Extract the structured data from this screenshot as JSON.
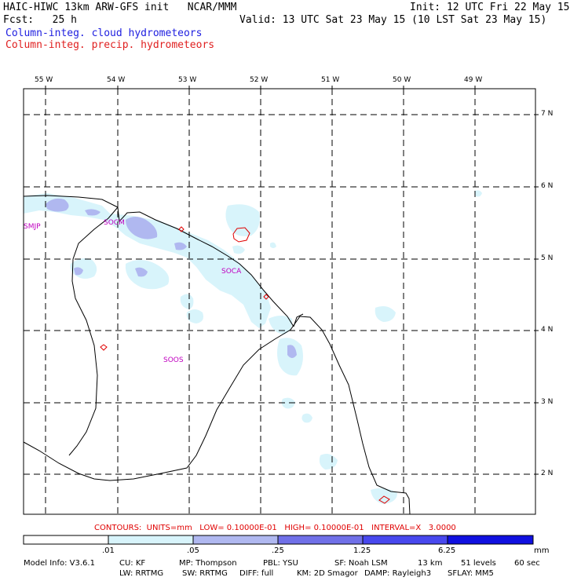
{
  "header": {
    "title_left": "HAIC-HIWC 13km ARW-GFS init   NCAR/MMM",
    "fcst": "Fcst:   25 h",
    "init": "Init: 12 UTC Fri 22 May 15",
    "valid": "Valid: 13 UTC Sat 23 May 15 (10 LST Sat 23 May 15)",
    "field1": "Column-integ. cloud hydrometeors",
    "field2": "Column-integ. precip. hydrometeors"
  },
  "map": {
    "lon_labels": [
      "55 W",
      "54 W",
      "53 W",
      "52 W",
      "51 W",
      "50 W",
      "49 W"
    ],
    "lat_labels": [
      "7 N",
      "6 N",
      "5 N",
      "4 N",
      "3 N",
      "2 N"
    ],
    "stations": [
      "SMJP",
      "SOCM",
      "SOCA",
      "SOOS"
    ]
  },
  "contours_line": "CONTOURS:  UNITS=mm   LOW= 0.10000E-01   HIGH= 0.10000E-01   INTERVAL=X   3.0000",
  "colorbar": {
    "ticks": [
      ".01",
      ".05",
      ".25",
      "1.25",
      "6.25"
    ],
    "units": "mm",
    "colors": [
      "#ffffff",
      "#d8f4fb",
      "#b0b8f0",
      "#7070e8",
      "#4848ee",
      "#1010e0"
    ]
  },
  "model_info": {
    "line1": [
      "Model Info: V3.6.1",
      "CU: KF",
      "MP: Thompson",
      "PBL: YSU",
      "SF: Noah LSM",
      "13 km",
      "51 levels",
      "60 sec"
    ],
    "line2": [
      "LW: RRTMG",
      "SW: RRTMG",
      "DIFF: full",
      "KM: 2D Smagor",
      "DAMP: Rayleigh3",
      "SFLAY: MM5"
    ]
  }
}
